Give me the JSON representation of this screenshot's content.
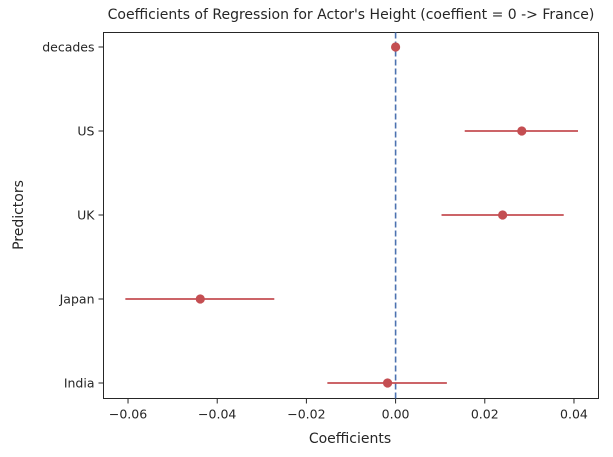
{
  "chart_data": {
    "type": "scatter",
    "title": "Coefficients of Regression for Actor's Height (coeffient = 0 -> France)",
    "xlabel": "Coefficients",
    "ylabel": "Predictors",
    "xlim": [
      -0.0655,
      0.0455
    ],
    "x_ticks": [
      -0.06,
      -0.04,
      -0.02,
      0.0,
      0.02,
      0.04
    ],
    "x_tick_labels": [
      "−0.06",
      "−0.04",
      "−0.02",
      "0.00",
      "0.02",
      "0.04"
    ],
    "reference_line": {
      "x": 0,
      "style": "dashed",
      "color": "#4c72b0"
    },
    "grid": false,
    "legend": "none",
    "point_color": "#c44e52",
    "categories": [
      "decades",
      "US",
      "UK",
      "Japan",
      "India"
    ],
    "points": [
      {
        "label": "decades",
        "coef": 0.0,
        "ci_low": 0.0,
        "ci_high": 0.0
      },
      {
        "label": "US",
        "coef": 0.0283,
        "ci_low": 0.0155,
        "ci_high": 0.0409
      },
      {
        "label": "UK",
        "coef": 0.024,
        "ci_low": 0.0103,
        "ci_high": 0.0377
      },
      {
        "label": "Japan",
        "coef": -0.0438,
        "ci_low": -0.0606,
        "ci_high": -0.0272
      },
      {
        "label": "India",
        "coef": -0.0018,
        "ci_low": -0.0153,
        "ci_high": 0.0115
      }
    ]
  }
}
